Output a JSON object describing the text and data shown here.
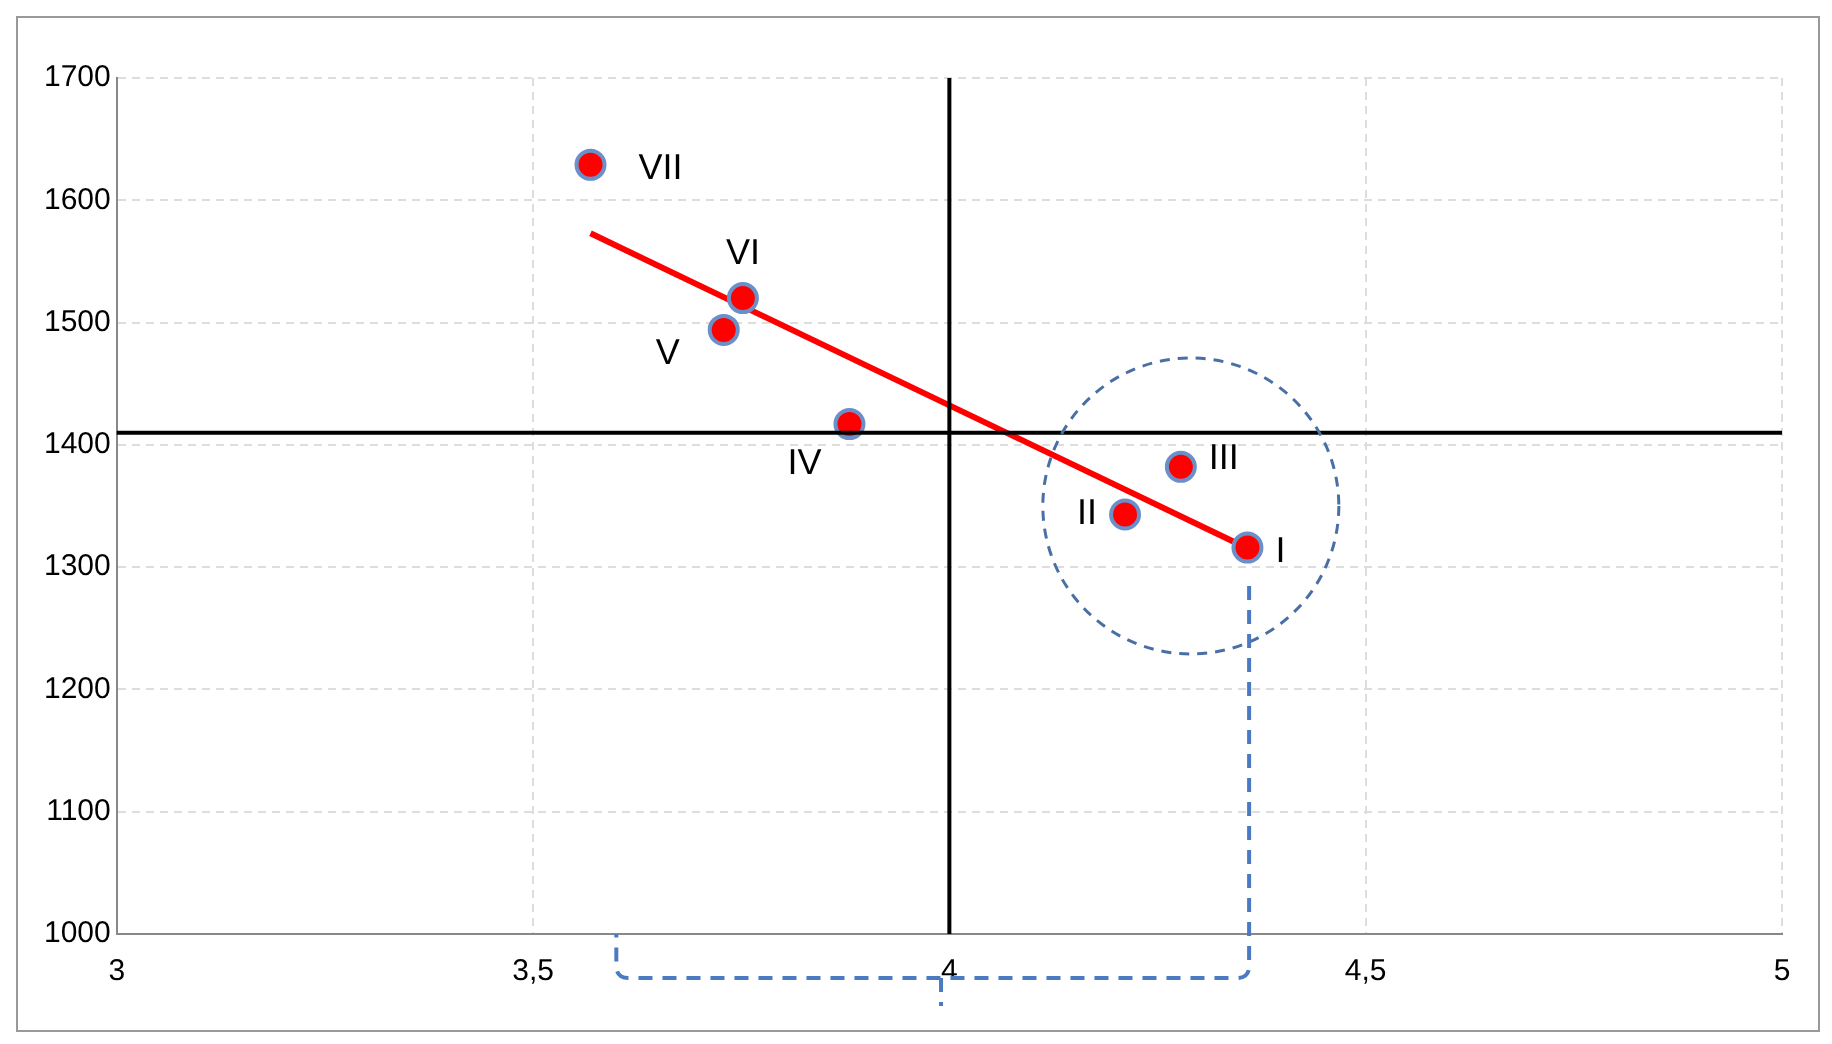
{
  "chart_data": {
    "type": "scatter",
    "marker": "circle",
    "grid": true,
    "legend": false,
    "xlim": [
      3,
      5
    ],
    "xticks": [
      3,
      {
        "value": 3.5,
        "label": "3,5"
      },
      4,
      {
        "value": 4.5,
        "label": "4,5"
      },
      5
    ],
    "ylim": [
      1000,
      1700
    ],
    "yticks": [
      1000,
      1100,
      1200,
      1300,
      1400,
      1500,
      1600,
      1700
    ],
    "series": [
      {
        "color": "#ff0000",
        "x": [
          4.358,
          4.211,
          4.278,
          3.88,
          3.729,
          3.752,
          3.569
        ],
        "values": [
          1316,
          1343,
          1382,
          1417,
          1494,
          1520,
          1629
        ]
      },
      {
        "type": "line",
        "color": "#ff0000",
        "marker": "none",
        "x": [
          3.569,
          4.341
        ],
        "values": [
          1573,
          1321
        ]
      }
    ],
    "ref_lines": [
      {
        "axis": "x",
        "value": 4,
        "color": "#000000"
      },
      {
        "axis": "y",
        "value": 1410,
        "color": "#000000"
      }
    ],
    "annotations": [
      {
        "text": "I",
        "x": 4.358,
        "y": 1316
      },
      {
        "text": "II",
        "x": 4.211,
        "y": 1343
      },
      {
        "text": "III",
        "x": 4.278,
        "y": 1382
      },
      {
        "text": "IV",
        "x": 3.88,
        "y": 1417
      },
      {
        "text": "V",
        "x": 3.729,
        "y": 1494
      },
      {
        "text": "VI",
        "x": 3.752,
        "y": 1520
      },
      {
        "text": "VII",
        "x": 3.569,
        "y": 1629
      }
    ]
  }
}
